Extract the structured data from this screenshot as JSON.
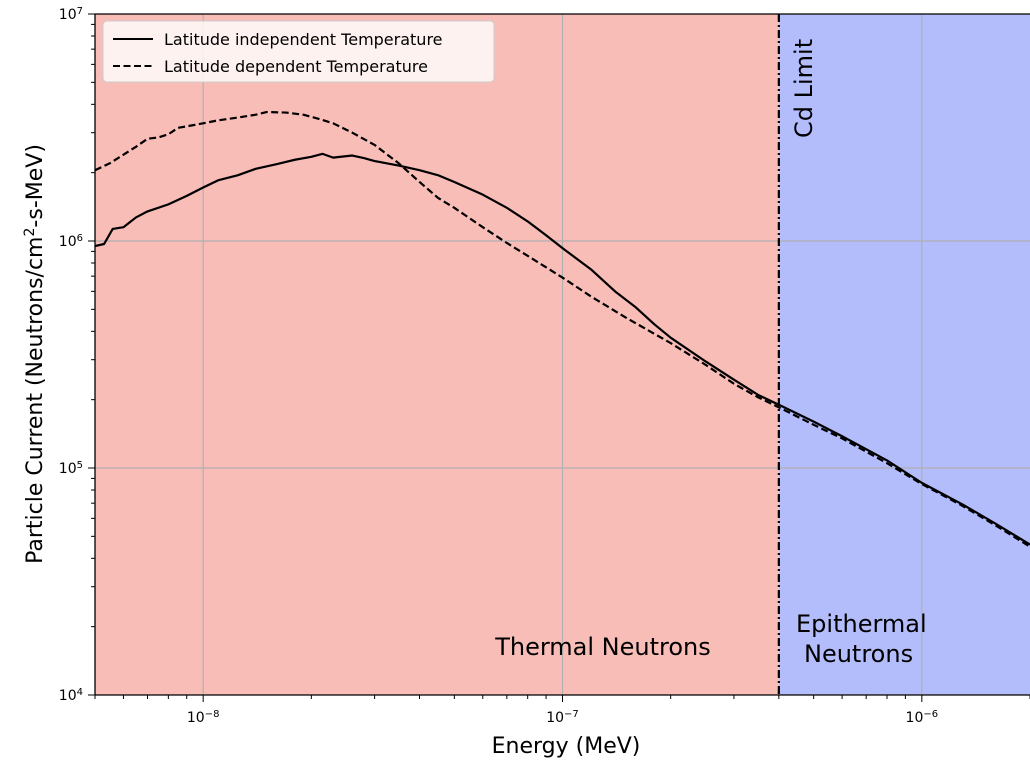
{
  "chart_data": {
    "type": "line",
    "xlabel": "Energy (MeV)",
    "ylabel": {
      "prefix": "Particle Current (Neutrons/cm",
      "sup": "2",
      "suffix": "-s-MeV)"
    },
    "xscale": "log",
    "yscale": "log",
    "xlim": [
      5e-09,
      2e-06
    ],
    "ylim": [
      10000.0,
      10000000.0
    ],
    "grid": true,
    "legend_position": "top-left",
    "x_ticks": [
      {
        "value": 1e-08,
        "base": "10",
        "exp": "−8"
      },
      {
        "value": 1e-07,
        "base": "10",
        "exp": "−7"
      },
      {
        "value": 1e-06,
        "base": "10",
        "exp": "−6"
      }
    ],
    "y_ticks": [
      {
        "value": 10000.0,
        "base": "10",
        "exp": "4"
      },
      {
        "value": 100000.0,
        "base": "10",
        "exp": "5"
      },
      {
        "value": 1000000.0,
        "base": "10",
        "exp": "6"
      },
      {
        "value": 10000000.0,
        "base": "10",
        "exp": "7"
      }
    ],
    "regions": [
      {
        "from": 5e-09,
        "to": 4e-07,
        "color": "#f9bdb8",
        "lines": [
          "Thermal Neutrons"
        ]
      },
      {
        "from": 4e-07,
        "to": 2e-06,
        "color": "#b3bdfc",
        "lines": [
          "Epithermal",
          "Neutrons"
        ]
      }
    ],
    "vline": {
      "x": 4e-07,
      "label": "Cd Limit",
      "style": "dash-dot",
      "color": "#000000"
    },
    "series": [
      {
        "name": "Latitude independent Temperature",
        "style": "solid",
        "color": "#000000",
        "points": [
          [
            5e-09,
            950000.0
          ],
          [
            5.3e-09,
            970000.0
          ],
          [
            5.6e-09,
            1130000.0
          ],
          [
            6e-09,
            1150000.0
          ],
          [
            6.5e-09,
            1270000.0
          ],
          [
            7e-09,
            1350000.0
          ],
          [
            8e-09,
            1450000.0
          ],
          [
            9e-09,
            1580000.0
          ],
          [
            1e-08,
            1720000.0
          ],
          [
            1.1e-08,
            1850000.0
          ],
          [
            1.25e-08,
            1950000.0
          ],
          [
            1.4e-08,
            2080000.0
          ],
          [
            1.6e-08,
            2180000.0
          ],
          [
            1.8e-08,
            2280000.0
          ],
          [
            2e-08,
            2350000.0
          ],
          [
            2.15e-08,
            2420000.0
          ],
          [
            2.3e-08,
            2330000.0
          ],
          [
            2.6e-08,
            2380000.0
          ],
          [
            2.8e-08,
            2320000.0
          ],
          [
            3e-08,
            2250000.0
          ],
          [
            3.5e-08,
            2150000.0
          ],
          [
            4e-08,
            2050000.0
          ],
          [
            4.5e-08,
            1950000.0
          ],
          [
            5e-08,
            1820000.0
          ],
          [
            6e-08,
            1600000.0
          ],
          [
            7e-08,
            1400000.0
          ],
          [
            8e-08,
            1220000.0
          ],
          [
            9e-08,
            1060000.0
          ],
          [
            1e-07,
            930000.0
          ],
          [
            1.2e-07,
            750000.0
          ],
          [
            1.4e-07,
            600000.0
          ],
          [
            1.6e-07,
            510000.0
          ],
          [
            1.8e-07,
            430000.0
          ],
          [
            2e-07,
            375000.0
          ],
          [
            2.5e-07,
            295000.0
          ],
          [
            3e-07,
            245000.0
          ],
          [
            3.5e-07,
            210000.0
          ],
          [
            4e-07,
            190000.0
          ],
          [
            5e-07,
            160000.0
          ],
          [
            6e-07,
            138000.0
          ],
          [
            8e-07,
            108000.0
          ],
          [
            1e-06,
            86000.0
          ],
          [
            1.3e-06,
            69000.0
          ],
          [
            1.6e-06,
            57000.0
          ],
          [
            2e-06,
            46000.0
          ]
        ]
      },
      {
        "name": "Latitude dependent Temperature",
        "style": "dashed",
        "color": "#000000",
        "points": [
          [
            5e-09,
            2050000.0
          ],
          [
            5.5e-09,
            2200000.0
          ],
          [
            6e-09,
            2400000.0
          ],
          [
            6.5e-09,
            2600000.0
          ],
          [
            7e-09,
            2820000.0
          ],
          [
            7.5e-09,
            2860000.0
          ],
          [
            8e-09,
            2950000.0
          ],
          [
            8.5e-09,
            3150000.0
          ],
          [
            9e-09,
            3200000.0
          ],
          [
            1e-08,
            3300000.0
          ],
          [
            1.1e-08,
            3400000.0
          ],
          [
            1.25e-08,
            3500000.0
          ],
          [
            1.4e-08,
            3600000.0
          ],
          [
            1.5e-08,
            3700000.0
          ],
          [
            1.7e-08,
            3680000.0
          ],
          [
            1.9e-08,
            3600000.0
          ],
          [
            2.1e-08,
            3450000.0
          ],
          [
            2.3e-08,
            3300000.0
          ],
          [
            2.6e-08,
            3000000.0
          ],
          [
            3e-08,
            2650000.0
          ],
          [
            3.5e-08,
            2200000.0
          ],
          [
            4e-08,
            1820000.0
          ],
          [
            4.5e-08,
            1550000.0
          ],
          [
            5e-08,
            1400000.0
          ],
          [
            6e-08,
            1150000.0
          ],
          [
            7e-08,
            980000.0
          ],
          [
            8e-08,
            860000.0
          ],
          [
            1e-07,
            690000.0
          ],
          [
            1.2e-07,
            570000.0
          ],
          [
            1.5e-07,
            460000.0
          ],
          [
            2e-07,
            355000.0
          ],
          [
            2.5e-07,
            285000.0
          ],
          [
            3e-07,
            235000.0
          ],
          [
            3.5e-07,
            205000.0
          ],
          [
            4e-07,
            185000.0
          ],
          [
            5e-07,
            155000.0
          ],
          [
            6e-07,
            135000.0
          ],
          [
            8e-07,
            105000.0
          ],
          [
            1e-06,
            85000.0
          ],
          [
            1.3e-06,
            68000.0
          ],
          [
            1.6e-06,
            56000.0
          ],
          [
            2e-06,
            45000.0
          ]
        ]
      }
    ]
  }
}
